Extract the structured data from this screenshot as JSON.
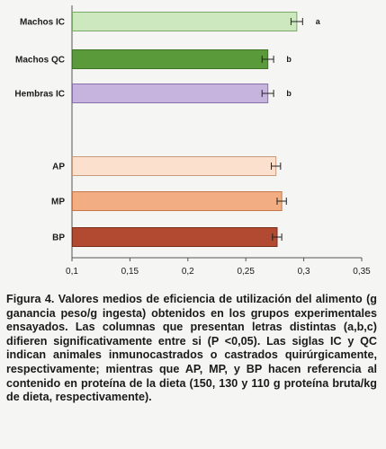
{
  "chart_data": {
    "type": "bar",
    "orientation": "horizontal",
    "title": "",
    "xlabel": "",
    "ylabel": "",
    "xlim": [
      0.1,
      0.35
    ],
    "x_ticks": [
      "0,1",
      "0,15",
      "0,2",
      "0,25",
      "0,3",
      "0,35"
    ],
    "x_tick_values": [
      0.1,
      0.15,
      0.2,
      0.25,
      0.3,
      0.35
    ],
    "grid": false,
    "categories": [
      "Machos IC",
      "Machos QC",
      "Hembras IC",
      "AP",
      "MP",
      "BP"
    ],
    "values": [
      0.294,
      0.269,
      0.269,
      0.276,
      0.281,
      0.277
    ],
    "errors": [
      0.005,
      0.005,
      0.005,
      0.004,
      0.004,
      0.004
    ],
    "significance": [
      "a",
      "b",
      "b",
      "",
      "",
      ""
    ],
    "colors": [
      "#cde7be",
      "#5b9a3b",
      "#c7b4de",
      "#fbe1cd",
      "#f3ad82",
      "#b24a31"
    ],
    "border_colors": [
      "#7aa866",
      "#3f7426",
      "#8a70ab",
      "#c79b7c",
      "#c6774a",
      "#7c2e1c"
    ]
  },
  "caption": "Figura 4. Valores medios de eficiencia de utilización del alimento (g ganancia peso/g ingesta) obtenidos en los grupos experimentales ensayados. Las columnas que presentan letras distintas (a,b,c) difieren significativamente entre si (P <0,05). Las siglas IC y QC indican animales inmunocastrados o castrados quirúrgicamente, respectivamente; mientras que AP, MP, y BP hacen referencia al contenido en proteína de la dieta (150, 130 y 110 g proteína bruta/kg de dieta, respectivamente)."
}
